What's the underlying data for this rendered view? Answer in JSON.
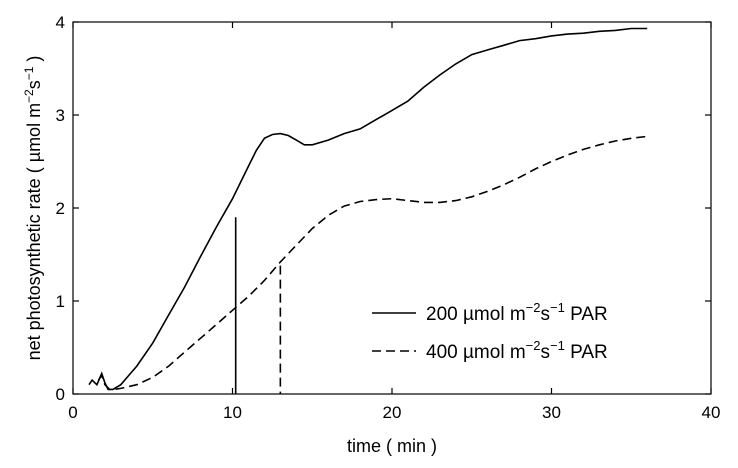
{
  "chart_data": {
    "type": "line",
    "title": "",
    "xlabel": "time ( min )",
    "ylabel": "net photosynthetic rate ( µmol m-2s-1 )",
    "ylabel_parts": {
      "prefix": "net photosynthetic rate ( µmol m",
      "exp1": "−2",
      "mid": "s",
      "exp2": "−1",
      "suffix": " )"
    },
    "xlim": [
      0,
      40
    ],
    "ylim": [
      0,
      4
    ],
    "xticks": [
      0,
      10,
      20,
      30,
      40
    ],
    "yticks": [
      0,
      1,
      2,
      3,
      4
    ],
    "grid": false,
    "legend_position": "bottom-right",
    "series": [
      {
        "name": "200 µmol m-2s-1 PAR",
        "legend": {
          "pre": "200  µmol m",
          "exp1": "−2",
          "mid": "s",
          "exp2": "−1",
          "post": " PAR"
        },
        "dash": "solid",
        "marker_x": 10.2,
        "marker_y": 1.9,
        "x": [
          1.0,
          1.2,
          1.5,
          1.8,
          2.0,
          2.2,
          2.5,
          3.0,
          3.5,
          4.0,
          5.0,
          6.0,
          7.0,
          8.0,
          9.0,
          10.0,
          11.0,
          11.5,
          12.0,
          12.5,
          13.0,
          13.5,
          14.0,
          14.5,
          15.0,
          16.0,
          17.0,
          18.0,
          19.0,
          20.0,
          21.0,
          22.0,
          23.0,
          24.0,
          25.0,
          26.0,
          27.0,
          28.0,
          29.0,
          30.0,
          31.0,
          32.0,
          33.0,
          34.0,
          35.0,
          36.0
        ],
        "y": [
          0.1,
          0.15,
          0.1,
          0.22,
          0.12,
          0.05,
          0.05,
          0.1,
          0.2,
          0.3,
          0.55,
          0.85,
          1.15,
          1.48,
          1.8,
          2.1,
          2.45,
          2.62,
          2.75,
          2.79,
          2.8,
          2.78,
          2.73,
          2.68,
          2.68,
          2.73,
          2.8,
          2.85,
          2.95,
          3.05,
          3.15,
          3.3,
          3.43,
          3.55,
          3.65,
          3.7,
          3.75,
          3.8,
          3.82,
          3.85,
          3.87,
          3.88,
          3.9,
          3.91,
          3.93,
          3.93
        ]
      },
      {
        "name": "400 µmol m-2s-1 PAR",
        "legend": {
          "pre": "400  µmol m",
          "exp1": "−2",
          "mid": "s",
          "exp2": "−1",
          "post": " PAR"
        },
        "dash": "dashed",
        "marker_x": 13.0,
        "marker_y": 1.38,
        "x": [
          1.6,
          1.8,
          2.0,
          2.3,
          2.6,
          3.0,
          4.0,
          5.0,
          6.0,
          7.0,
          8.0,
          9.0,
          10.0,
          11.0,
          12.0,
          13.0,
          14.0,
          15.0,
          16.0,
          17.0,
          18.0,
          19.0,
          20.0,
          21.0,
          22.0,
          23.0,
          24.0,
          25.0,
          26.0,
          27.0,
          28.0,
          29.0,
          30.0,
          31.0,
          32.0,
          33.0,
          34.0,
          35.0,
          36.0
        ],
        "y": [
          0.15,
          0.2,
          0.1,
          0.05,
          0.05,
          0.06,
          0.1,
          0.18,
          0.3,
          0.45,
          0.6,
          0.75,
          0.9,
          1.05,
          1.22,
          1.42,
          1.6,
          1.78,
          1.92,
          2.02,
          2.07,
          2.09,
          2.1,
          2.08,
          2.06,
          2.06,
          2.08,
          2.12,
          2.18,
          2.25,
          2.33,
          2.42,
          2.5,
          2.57,
          2.63,
          2.68,
          2.72,
          2.75,
          2.77
        ]
      }
    ]
  }
}
